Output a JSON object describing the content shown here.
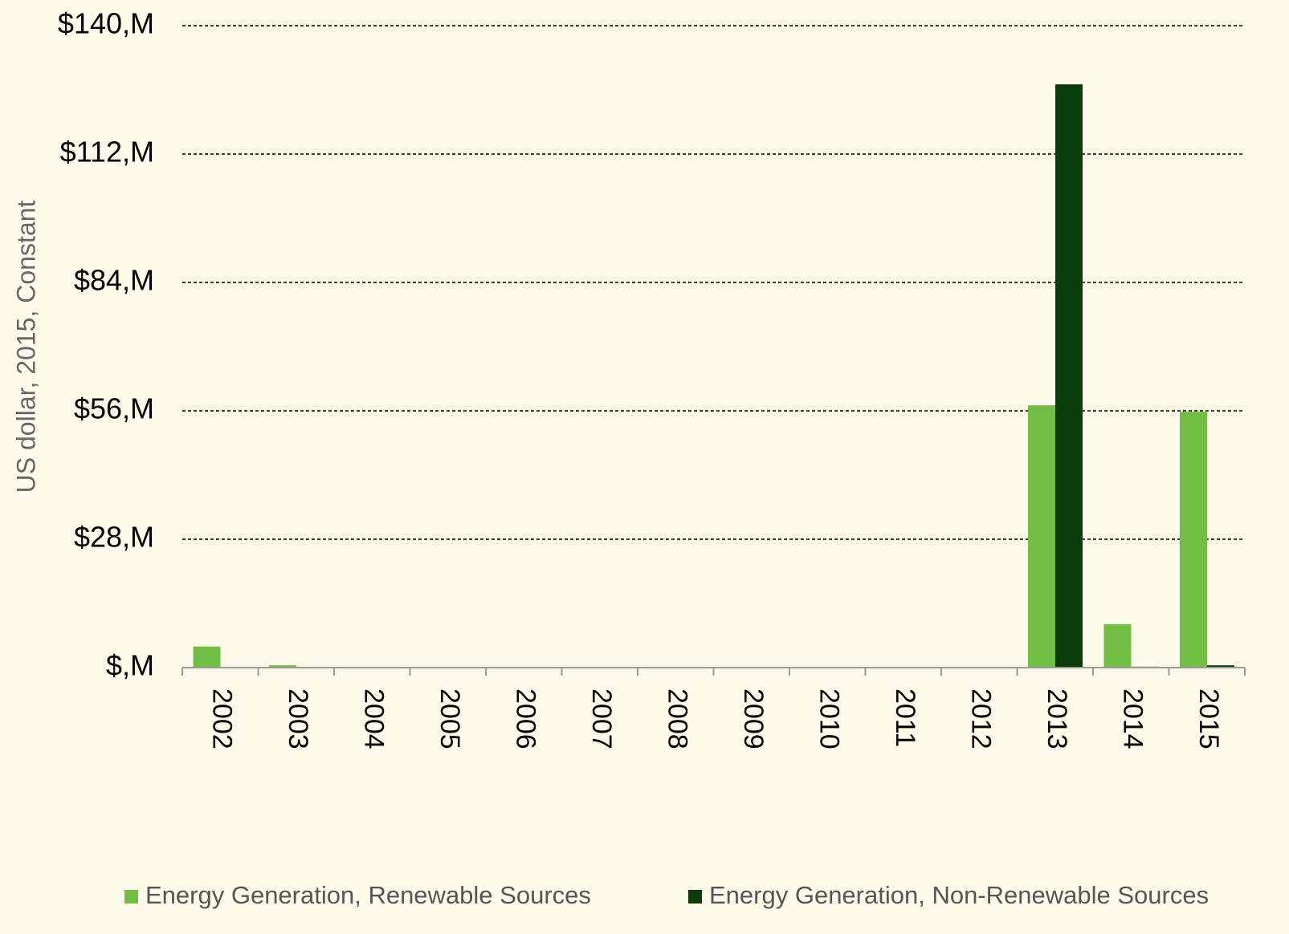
{
  "chart_data": {
    "type": "bar",
    "y_label": "US dollar, 2015, Constant",
    "categories": [
      "2002",
      "2003",
      "2004",
      "2005",
      "2006",
      "2007",
      "2008",
      "2009",
      "2010",
      "2011",
      "2012",
      "2013",
      "2014",
      "2015"
    ],
    "series": [
      {
        "name": "Energy Generation, Renewable Sources",
        "color": "#70bf44",
        "values": [
          4.6,
          0.5,
          0,
          0,
          0,
          0,
          0,
          0,
          0,
          0,
          0,
          57.2,
          9.5,
          55.8
        ]
      },
      {
        "name": "Energy Generation, Non-Renewable Sources",
        "color": "#0a3d0a",
        "values": [
          0,
          0,
          0,
          0,
          0,
          0,
          0,
          0,
          0,
          0,
          0,
          127.2,
          0.2,
          0.5
        ]
      }
    ],
    "ylim": [
      0,
      140
    ],
    "yticks": [
      {
        "value": 0,
        "label": "$,M"
      },
      {
        "value": 28,
        "label": "$28,M"
      },
      {
        "value": 56,
        "label": "$56,M"
      },
      {
        "value": 84,
        "label": "$84,M"
      },
      {
        "value": 112,
        "label": "$112,M"
      },
      {
        "value": 140,
        "label": "$140,M"
      }
    ],
    "grid": true
  }
}
